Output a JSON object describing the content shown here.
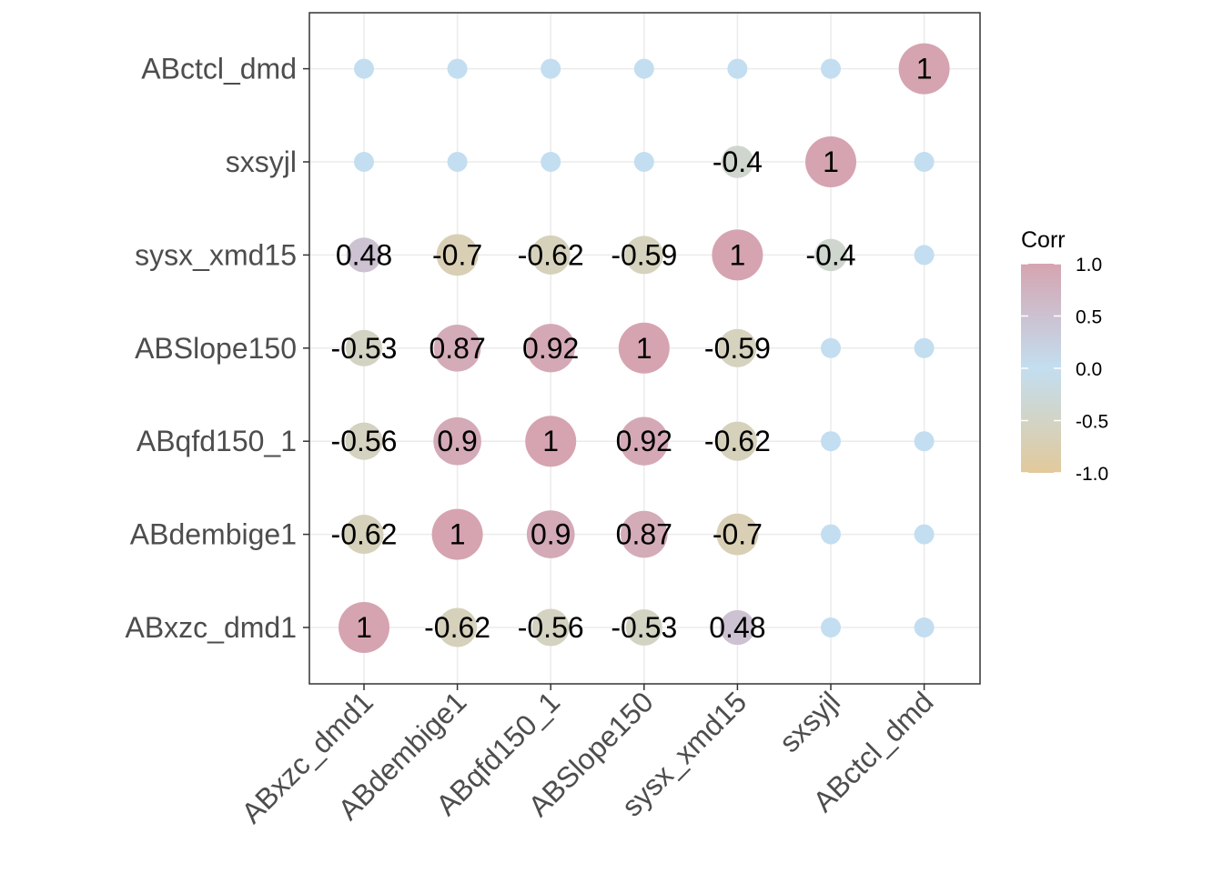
{
  "chart_data": {
    "type": "heatmap",
    "title": "",
    "xlabel": "",
    "ylabel": "",
    "variables": [
      "ABxzc_dmd1",
      "ABdembige1",
      "ABqfd150_1",
      "ABSlope150",
      "sysx_xmd15",
      "sxsyjl",
      "ABctcl_dmd"
    ],
    "matrix": [
      [
        1,
        -0.62,
        -0.56,
        -0.53,
        0.48,
        0,
        0
      ],
      [
        -0.62,
        1,
        0.9,
        0.87,
        -0.7,
        0,
        0
      ],
      [
        -0.56,
        0.9,
        1,
        0.92,
        -0.62,
        0,
        0
      ],
      [
        -0.53,
        0.87,
        0.92,
        1,
        -0.59,
        0,
        0
      ],
      [
        0.48,
        -0.7,
        -0.62,
        -0.59,
        1,
        -0.4,
        0
      ],
      [
        0,
        0,
        0,
        0,
        -0.4,
        1,
        0
      ],
      [
        0,
        0,
        0,
        0,
        0,
        0,
        1
      ]
    ],
    "labels": [
      [
        "1",
        "-0.62",
        "-0.56",
        "-0.53",
        "0.48",
        "",
        ""
      ],
      [
        "-0.62",
        "1",
        "0.9",
        "0.87",
        "-0.7",
        "",
        ""
      ],
      [
        "-0.56",
        "0.9",
        "1",
        "0.92",
        "-0.62",
        "",
        ""
      ],
      [
        "-0.53",
        "0.87",
        "0.92",
        "1",
        "-0.59",
        "",
        ""
      ],
      [
        "0.48",
        "-0.7",
        "-0.62",
        "-0.59",
        "1",
        "-0.4",
        ""
      ],
      [
        "",
        "",
        "",
        "",
        "-0.4",
        "1",
        ""
      ],
      [
        "",
        "",
        "",
        "",
        "",
        "",
        "1"
      ]
    ],
    "legend": {
      "title": "Corr",
      "placement": "right",
      "range": [
        -1.0,
        1.0
      ],
      "ticks": [
        "1.0",
        "0.5",
        "0.0",
        "-0.5",
        "-1.0"
      ],
      "colors": {
        "low": "#E2C99B",
        "mid": "#C3DEF0",
        "high": "#D5A4B0"
      }
    },
    "grid": true
  }
}
